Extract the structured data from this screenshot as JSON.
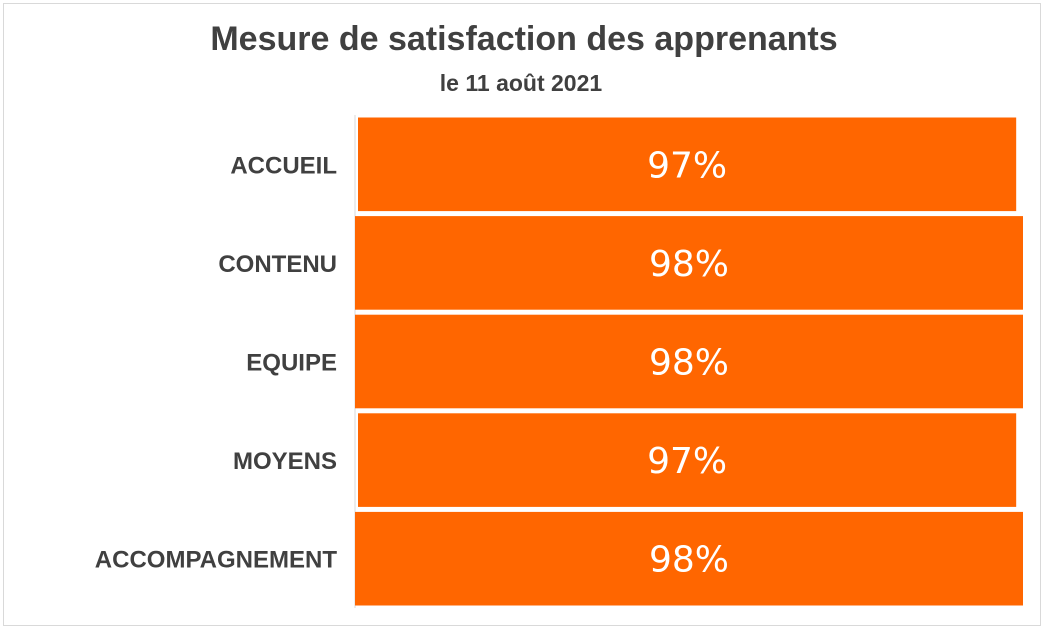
{
  "chart_data": {
    "type": "bar",
    "orientation": "horizontal",
    "title": "Mesure de satisfaction des apprenants",
    "subtitle": "le 11 août 2021",
    "categories": [
      "ACCUEIL",
      "CONTENU",
      "EQUIPE",
      "MOYENS",
      "ACCOMPAGNEMENT"
    ],
    "values": [
      97,
      98,
      98,
      97,
      98
    ],
    "value_labels": [
      "97%",
      "98%",
      "98%",
      "97%",
      "98%"
    ],
    "xlim": [
      0,
      98
    ],
    "grid": false,
    "bar_color": "#FF6600"
  }
}
